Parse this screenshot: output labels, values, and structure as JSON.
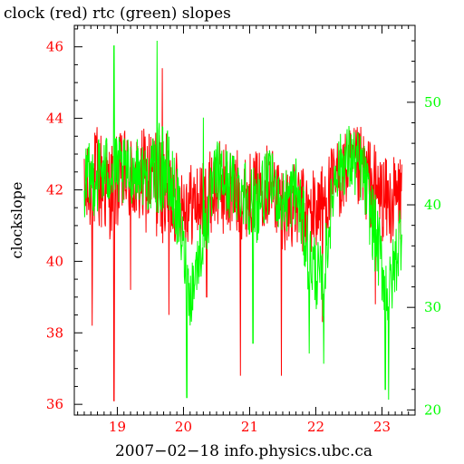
{
  "chart_data": {
    "type": "line",
    "title": "clock (red) rtc (green) slopes",
    "xlabel": "2007−02−18  info.physics.ubc.ca",
    "ylabel": "clockslope",
    "xlim": [
      18.35,
      23.5
    ],
    "ylim": [
      35.7,
      46.6
    ],
    "y2lim": [
      19.5,
      57.5
    ],
    "x_ticks": [
      19,
      20,
      21,
      22,
      23
    ],
    "x_tick_labels": [
      "19",
      "20",
      "21",
      "22",
      "23"
    ],
    "y_ticks": [
      36,
      38,
      40,
      42,
      44,
      46
    ],
    "y_tick_labels": [
      "36",
      "38",
      "40",
      "42",
      "44",
      "46"
    ],
    "y2_ticks": [
      20,
      30,
      40,
      50
    ],
    "y2_tick_labels": [
      "20",
      "30",
      "40",
      "50"
    ],
    "grid": false,
    "colors": {
      "clock": "#ff0000",
      "rtc": "#00ff00",
      "axis": "#000000",
      "left_axis_text": "#ff0000",
      "right_axis_text": "#00ff00"
    },
    "series": [
      {
        "key": "clock",
        "axis": "left",
        "x": [
          18.5,
          18.7,
          18.9,
          19.1,
          19.3,
          19.5,
          19.7,
          19.9,
          20.1,
          20.3,
          20.5,
          20.7,
          20.9,
          21.1,
          21.3,
          21.5,
          21.7,
          21.9,
          22.1,
          22.3,
          22.5,
          22.7,
          22.9,
          23.1,
          23.3
        ],
        "level": [
          41.8,
          42.3,
          42.0,
          42.4,
          42.2,
          42.3,
          42.0,
          41.8,
          41.6,
          41.7,
          42.1,
          42.0,
          41.8,
          42.0,
          42.2,
          41.6,
          41.5,
          41.3,
          41.6,
          42.2,
          42.6,
          42.5,
          42.0,
          41.6,
          41.8
        ],
        "spread": [
          1.2,
          1.6,
          1.4,
          1.3,
          1.4,
          1.6,
          1.7,
          1.3,
          1.2,
          1.1,
          1.3,
          1.4,
          1.2,
          1.1,
          1.2,
          1.3,
          1.2,
          1.3,
          1.2,
          1.2,
          1.1,
          1.3,
          1.3,
          1.2,
          1.4
        ],
        "spikes": [
          [
            18.62,
            38.2
          ],
          [
            18.95,
            36.1
          ],
          [
            19.2,
            39.2
          ],
          [
            19.68,
            45.4
          ],
          [
            19.78,
            38.5
          ],
          [
            20.35,
            39.0
          ],
          [
            20.86,
            36.8
          ],
          [
            21.48,
            36.8
          ],
          [
            22.1,
            38.3
          ],
          [
            22.9,
            38.8
          ],
          [
            23.32,
            38.5
          ]
        ]
      },
      {
        "key": "rtc",
        "axis": "right",
        "x": [
          18.5,
          18.7,
          18.9,
          19.1,
          19.3,
          19.5,
          19.7,
          19.9,
          20.1,
          20.3,
          20.5,
          20.7,
          20.9,
          21.1,
          21.3,
          21.5,
          21.7,
          21.9,
          22.1,
          22.3,
          22.5,
          22.7,
          22.9,
          23.1,
          23.3
        ],
        "level": [
          42.0,
          43.0,
          43.5,
          43.0,
          43.5,
          42.5,
          44.0,
          40.0,
          31.0,
          37.0,
          43.0,
          42.0,
          41.5,
          40.0,
          42.5,
          40.0,
          41.5,
          35.0,
          32.0,
          43.5,
          44.5,
          43.5,
          37.0,
          31.0,
          38.0
        ],
        "spread": [
          3.5,
          4.0,
          3.5,
          3.5,
          3.0,
          3.5,
          5.0,
          4.0,
          3.0,
          3.5,
          3.5,
          3.5,
          3.5,
          4.0,
          3.0,
          3.5,
          3.5,
          4.0,
          3.5,
          3.0,
          3.5,
          3.5,
          4.0,
          3.5,
          4.0
        ],
        "spikes": [
          [
            18.95,
            55.5
          ],
          [
            19.6,
            56.0
          ],
          [
            20.05,
            21.2
          ],
          [
            20.3,
            48.5
          ],
          [
            21.05,
            26.5
          ],
          [
            21.9,
            25.5
          ],
          [
            22.12,
            24.5
          ],
          [
            23.05,
            22.0
          ],
          [
            23.1,
            21.0
          ],
          [
            23.35,
            45.5
          ]
        ]
      }
    ]
  }
}
